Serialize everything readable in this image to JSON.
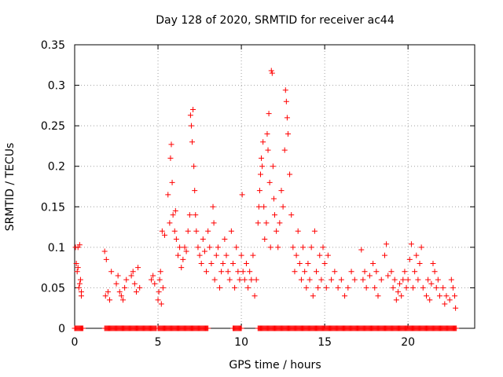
{
  "chart_data": {
    "type": "scatter",
    "title": "Day 128 of 2020, SRMTID for receiver ac44",
    "xlabel": "GPS time / hours",
    "ylabel": "SRMTID / TECUs",
    "xlim": [
      0,
      24
    ],
    "ylim": [
      0,
      0.35
    ],
    "xticks": [
      0,
      5,
      10,
      15,
      20
    ],
    "xtick_labels": [
      "0",
      "5",
      "10",
      "15",
      "20"
    ],
    "yticks": [
      0,
      0.05,
      0.1,
      0.15,
      0.2,
      0.25,
      0.3,
      0.35
    ],
    "ytick_labels": [
      "0",
      "0.05",
      "0.1",
      "0.15",
      "0.2",
      "0.25",
      "0.3",
      "0.35"
    ],
    "grid": true,
    "marker": "+",
    "series": [
      {
        "name": "SRMTID",
        "color": "#ff0000",
        "points": [
          [
            0.05,
            0.1
          ],
          [
            0.1,
            0.08
          ],
          [
            0.15,
            0.07
          ],
          [
            0.2,
            0.1
          ],
          [
            0.25,
            0.05
          ],
          [
            0.3,
            0.103
          ],
          [
            0.35,
            0.06
          ],
          [
            0.4,
            0.045
          ],
          [
            0.4,
            0.04
          ],
          [
            0.2,
            0.075
          ],
          [
            0.3,
            0.055
          ],
          [
            1.8,
            0.095
          ],
          [
            1.9,
            0.085
          ],
          [
            1.85,
            0.04
          ],
          [
            2.0,
            0.045
          ],
          [
            2.1,
            0.035
          ],
          [
            2.2,
            0.07
          ],
          [
            2.5,
            0.055
          ],
          [
            2.6,
            0.065
          ],
          [
            2.7,
            0.045
          ],
          [
            2.8,
            0.04
          ],
          [
            2.9,
            0.035
          ],
          [
            3.0,
            0.05
          ],
          [
            3.1,
            0.06
          ],
          [
            3.4,
            0.065
          ],
          [
            3.5,
            0.07
          ],
          [
            3.6,
            0.055
          ],
          [
            3.7,
            0.045
          ],
          [
            3.8,
            0.075
          ],
          [
            3.9,
            0.05
          ],
          [
            4.6,
            0.06
          ],
          [
            4.7,
            0.065
          ],
          [
            4.8,
            0.055
          ],
          [
            5.0,
            0.035
          ],
          [
            5.05,
            0.045
          ],
          [
            5.1,
            0.06
          ],
          [
            5.15,
            0.07
          ],
          [
            5.2,
            0.03
          ],
          [
            5.3,
            0.05
          ],
          [
            5.25,
            0.12
          ],
          [
            5.4,
            0.115
          ],
          [
            5.6,
            0.165
          ],
          [
            5.7,
            0.13
          ],
          [
            5.75,
            0.21
          ],
          [
            5.8,
            0.227
          ],
          [
            5.85,
            0.18
          ],
          [
            5.9,
            0.14
          ],
          [
            6.0,
            0.12
          ],
          [
            6.05,
            0.145
          ],
          [
            6.1,
            0.11
          ],
          [
            6.2,
            0.09
          ],
          [
            6.3,
            0.1
          ],
          [
            6.4,
            0.075
          ],
          [
            6.5,
            0.085
          ],
          [
            6.6,
            0.1
          ],
          [
            6.7,
            0.095
          ],
          [
            6.8,
            0.12
          ],
          [
            6.9,
            0.14
          ],
          [
            6.95,
            0.263
          ],
          [
            7.0,
            0.25
          ],
          [
            7.05,
            0.23
          ],
          [
            7.1,
            0.27
          ],
          [
            7.15,
            0.2
          ],
          [
            7.2,
            0.17
          ],
          [
            7.25,
            0.14
          ],
          [
            7.3,
            0.12
          ],
          [
            7.4,
            0.1
          ],
          [
            7.5,
            0.09
          ],
          [
            7.6,
            0.08
          ],
          [
            7.7,
            0.11
          ],
          [
            7.8,
            0.095
          ],
          [
            7.9,
            0.07
          ],
          [
            8.0,
            0.12
          ],
          [
            8.1,
            0.1
          ],
          [
            8.2,
            0.08
          ],
          [
            8.3,
            0.15
          ],
          [
            8.35,
            0.13
          ],
          [
            8.4,
            0.06
          ],
          [
            8.5,
            0.09
          ],
          [
            8.6,
            0.1
          ],
          [
            8.7,
            0.05
          ],
          [
            8.8,
            0.07
          ],
          [
            8.9,
            0.08
          ],
          [
            9.0,
            0.11
          ],
          [
            9.1,
            0.09
          ],
          [
            9.2,
            0.07
          ],
          [
            9.3,
            0.06
          ],
          [
            9.4,
            0.12
          ],
          [
            9.5,
            0.08
          ],
          [
            9.6,
            0.05
          ],
          [
            9.7,
            0.1
          ],
          [
            9.8,
            0.07
          ],
          [
            9.9,
            0.06
          ],
          [
            10.0,
            0.09
          ],
          [
            10.05,
            0.165
          ],
          [
            10.1,
            0.07
          ],
          [
            10.2,
            0.06
          ],
          [
            10.3,
            0.08
          ],
          [
            10.4,
            0.05
          ],
          [
            10.5,
            0.07
          ],
          [
            10.6,
            0.06
          ],
          [
            10.7,
            0.09
          ],
          [
            10.8,
            0.04
          ],
          [
            10.9,
            0.06
          ],
          [
            11.0,
            0.13
          ],
          [
            11.05,
            0.15
          ],
          [
            11.1,
            0.17
          ],
          [
            11.15,
            0.19
          ],
          [
            11.2,
            0.21
          ],
          [
            11.25,
            0.2
          ],
          [
            11.3,
            0.23
          ],
          [
            11.35,
            0.15
          ],
          [
            11.4,
            0.11
          ],
          [
            11.5,
            0.13
          ],
          [
            11.55,
            0.24
          ],
          [
            11.6,
            0.22
          ],
          [
            11.65,
            0.265
          ],
          [
            11.7,
            0.18
          ],
          [
            11.75,
            0.1
          ],
          [
            11.8,
            0.318
          ],
          [
            11.85,
            0.315
          ],
          [
            11.9,
            0.2
          ],
          [
            11.95,
            0.16
          ],
          [
            12.0,
            0.14
          ],
          [
            12.1,
            0.12
          ],
          [
            12.2,
            0.1
          ],
          [
            12.3,
            0.13
          ],
          [
            12.4,
            0.17
          ],
          [
            12.5,
            0.15
          ],
          [
            12.6,
            0.22
          ],
          [
            12.65,
            0.294
          ],
          [
            12.7,
            0.28
          ],
          [
            12.75,
            0.26
          ],
          [
            12.8,
            0.24
          ],
          [
            12.9,
            0.19
          ],
          [
            13.0,
            0.14
          ],
          [
            13.1,
            0.1
          ],
          [
            13.2,
            0.07
          ],
          [
            13.3,
            0.09
          ],
          [
            13.4,
            0.12
          ],
          [
            13.5,
            0.08
          ],
          [
            13.6,
            0.06
          ],
          [
            13.7,
            0.1
          ],
          [
            13.8,
            0.07
          ],
          [
            13.9,
            0.05
          ],
          [
            14.0,
            0.08
          ],
          [
            14.1,
            0.06
          ],
          [
            14.2,
            0.1
          ],
          [
            14.3,
            0.04
          ],
          [
            14.4,
            0.12
          ],
          [
            14.5,
            0.07
          ],
          [
            14.6,
            0.05
          ],
          [
            14.7,
            0.09
          ],
          [
            14.8,
            0.06
          ],
          [
            14.9,
            0.1
          ],
          [
            15.0,
            0.08
          ],
          [
            15.1,
            0.05
          ],
          [
            15.2,
            0.09
          ],
          [
            15.4,
            0.06
          ],
          [
            15.6,
            0.07
          ],
          [
            15.8,
            0.05
          ],
          [
            16.0,
            0.06
          ],
          [
            16.2,
            0.04
          ],
          [
            16.4,
            0.05
          ],
          [
            16.6,
            0.07
          ],
          [
            16.8,
            0.06
          ],
          [
            17.2,
            0.097
          ],
          [
            17.3,
            0.06
          ],
          [
            17.4,
            0.07
          ],
          [
            17.5,
            0.05
          ],
          [
            17.7,
            0.065
          ],
          [
            17.9,
            0.08
          ],
          [
            18.0,
            0.05
          ],
          [
            18.1,
            0.07
          ],
          [
            18.2,
            0.04
          ],
          [
            18.4,
            0.06
          ],
          [
            18.6,
            0.09
          ],
          [
            18.7,
            0.104
          ],
          [
            18.8,
            0.065
          ],
          [
            19.0,
            0.07
          ],
          [
            19.1,
            0.05
          ],
          [
            19.2,
            0.06
          ],
          [
            19.3,
            0.035
          ],
          [
            19.4,
            0.045
          ],
          [
            19.5,
            0.055
          ],
          [
            19.6,
            0.04
          ],
          [
            19.7,
            0.06
          ],
          [
            19.8,
            0.07
          ],
          [
            19.9,
            0.05
          ],
          [
            20.0,
            0.06
          ],
          [
            20.1,
            0.085
          ],
          [
            20.2,
            0.104
          ],
          [
            20.3,
            0.05
          ],
          [
            20.4,
            0.07
          ],
          [
            20.5,
            0.09
          ],
          [
            20.6,
            0.06
          ],
          [
            20.7,
            0.08
          ],
          [
            20.8,
            0.1
          ],
          [
            20.9,
            0.05
          ],
          [
            21.1,
            0.04
          ],
          [
            21.2,
            0.06
          ],
          [
            21.3,
            0.035
          ],
          [
            21.4,
            0.055
          ],
          [
            21.5,
            0.08
          ],
          [
            21.6,
            0.07
          ],
          [
            21.7,
            0.05
          ],
          [
            21.8,
            0.06
          ],
          [
            21.9,
            0.04
          ],
          [
            22.1,
            0.05
          ],
          [
            22.2,
            0.03
          ],
          [
            22.3,
            0.04
          ],
          [
            22.5,
            0.035
          ],
          [
            22.6,
            0.06
          ],
          [
            22.7,
            0.05
          ],
          [
            22.8,
            0.04
          ],
          [
            22.85,
            0.025
          ]
        ],
        "zero_runs": [
          [
            0,
            0.5
          ],
          [
            1.8,
            4.9
          ],
          [
            5.0,
            8.0
          ],
          [
            9.5,
            10.0
          ],
          [
            11.0,
            22.9
          ]
        ]
      }
    ]
  }
}
